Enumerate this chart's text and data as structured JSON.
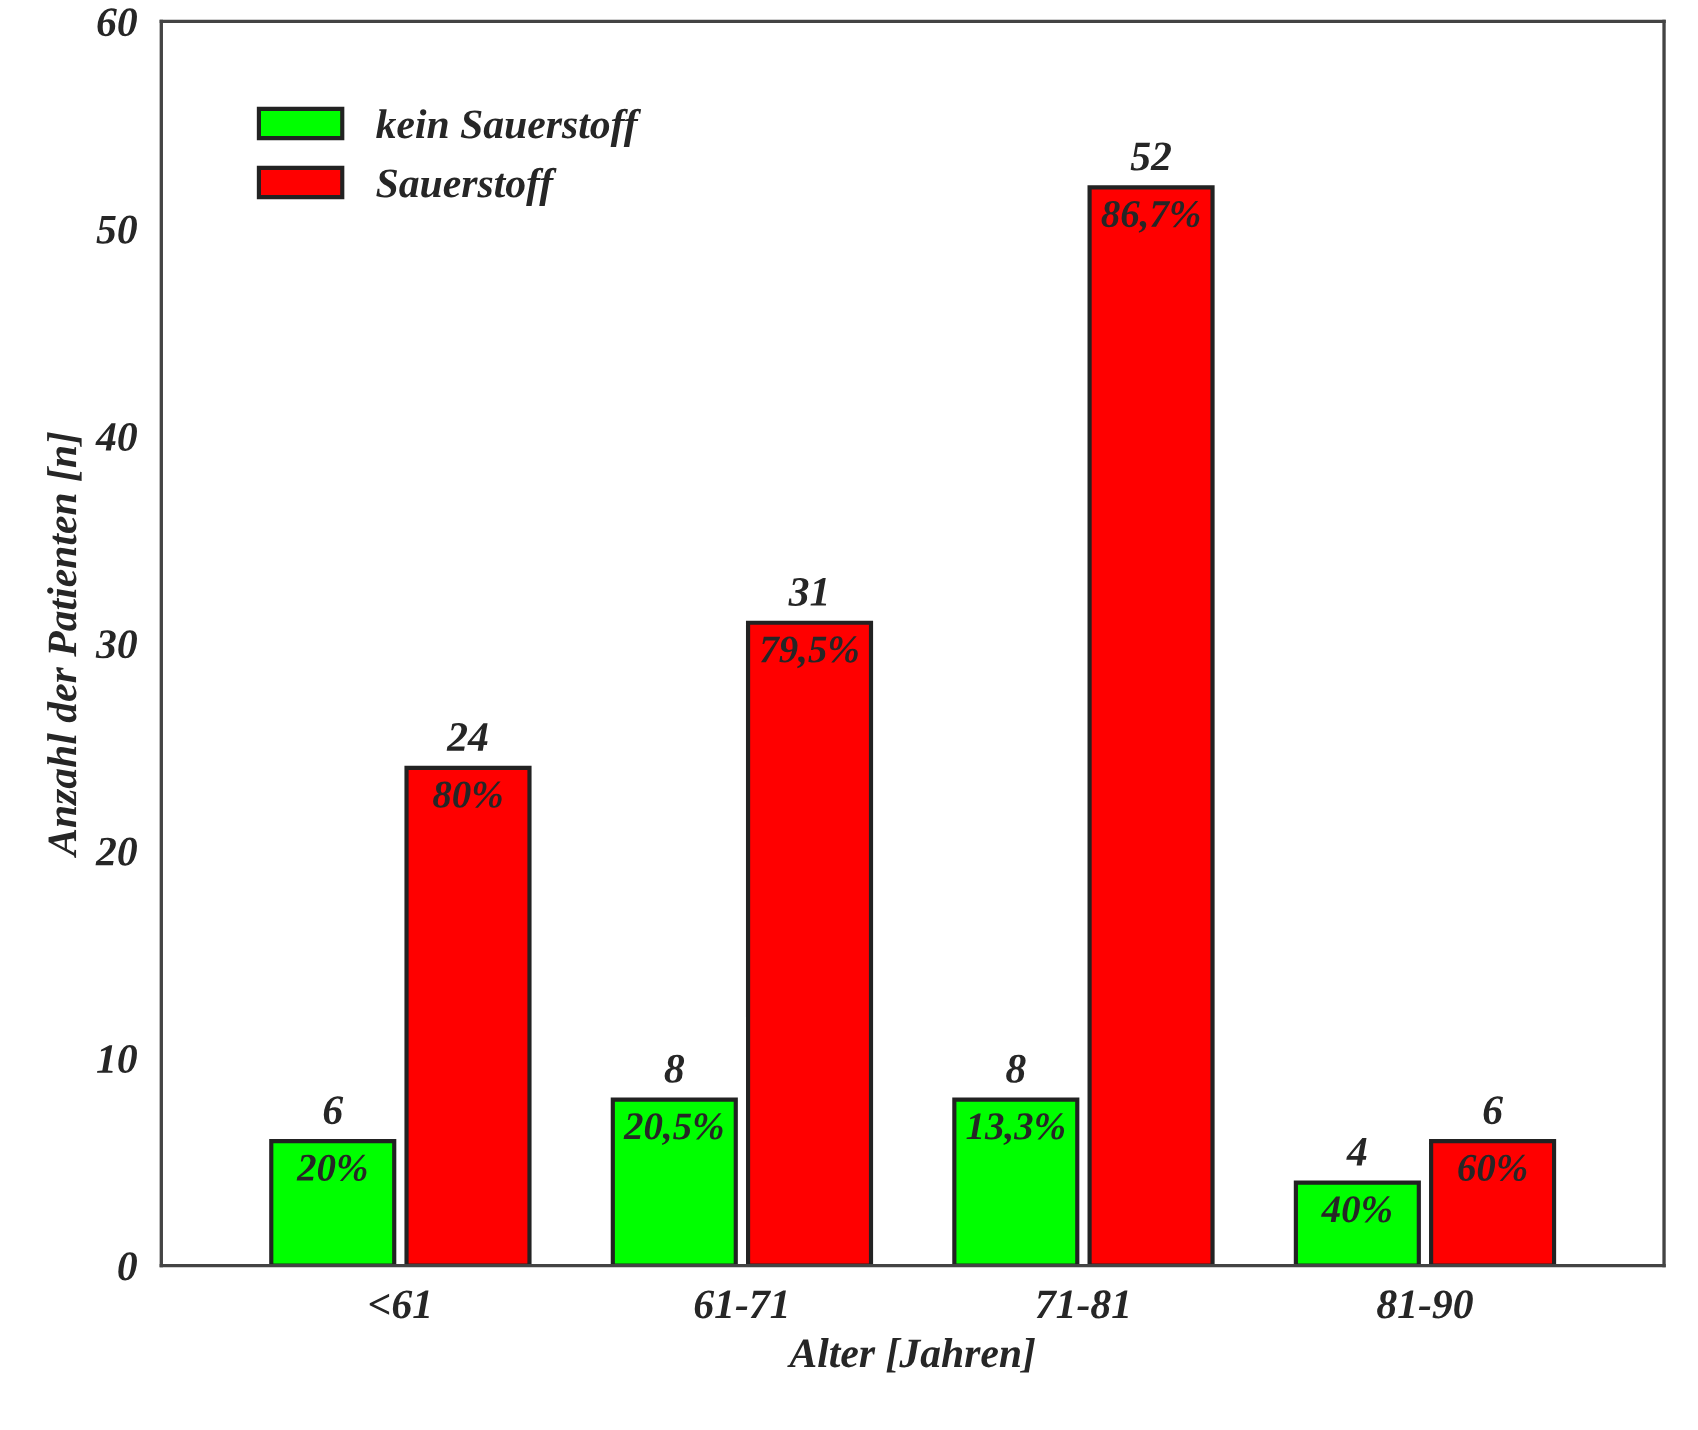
{
  "chart_data": {
    "type": "bar",
    "xlabel": "Alter [Jahren]",
    "ylabel": "Anzahl der Patienten [n]",
    "categories": [
      "<61",
      "61-71",
      "71-81",
      "81-90"
    ],
    "series": [
      {
        "name": "kein Sauerstoff",
        "color": "#00ff00",
        "values": [
          6,
          8,
          8,
          4
        ]
      },
      {
        "name": "Sauerstoff",
        "color": "#ff0000",
        "values": [
          24,
          31,
          52,
          6
        ]
      }
    ],
    "annotations": [
      {
        "text": "20%",
        "x": "<61",
        "y": 6
      },
      {
        "text": "20,5%",
        "x": "61-71",
        "y": 8
      },
      {
        "text": "13,3%",
        "x": "71-81",
        "y": 8
      },
      {
        "text": "40%",
        "x": "81-90",
        "y": 4
      },
      {
        "text": "80%",
        "x": "<61",
        "y": 24
      },
      {
        "text": "79,5%",
        "x": "61-71",
        "y": 31
      },
      {
        "text": "86,7%",
        "x": "71-81",
        "y": 52
      },
      {
        "text": "60%",
        "x": "81-90",
        "y": 6
      }
    ],
    "ylim": [
      0,
      60
    ],
    "yticks": [
      0,
      10,
      20,
      30,
      40,
      50,
      60
    ],
    "data_labels": true,
    "grid": false,
    "legend": "top left"
  }
}
